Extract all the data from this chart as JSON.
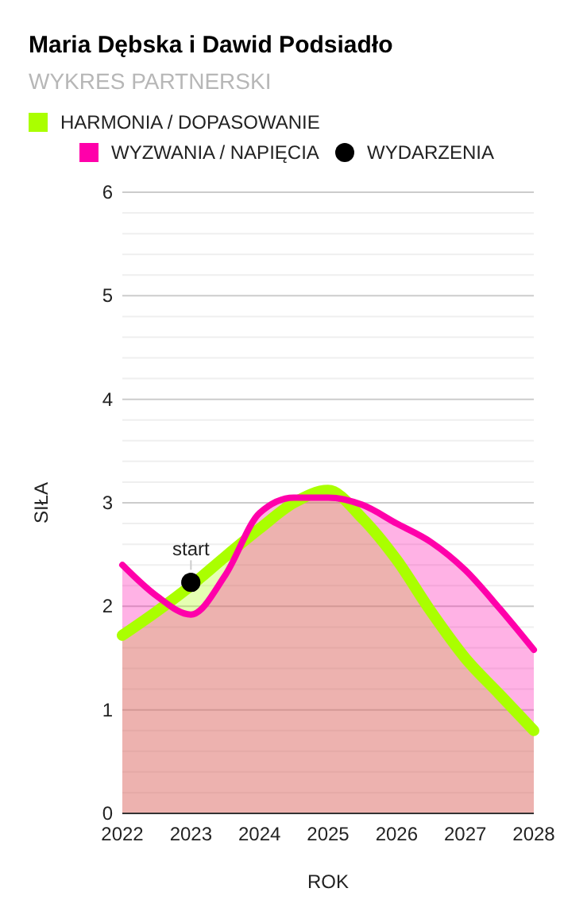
{
  "chart_data": {
    "type": "area",
    "title": "Maria Dębska i Dawid Podsiadło",
    "subtitle": "WYKRES PARTNERSKI",
    "xlabel": "ROK",
    "ylabel": "SIŁA",
    "x": [
      2022,
      2022.5,
      2023,
      2023.5,
      2024,
      2024.5,
      2025,
      2025.5,
      2026,
      2026.5,
      2027,
      2027.5,
      2028
    ],
    "series": [
      {
        "name": "HARMONIA / DOPASOWANIE",
        "color": "#aaff00",
        "values": [
          1.72,
          1.95,
          2.2,
          2.48,
          2.75,
          3.0,
          3.12,
          2.85,
          2.45,
          1.95,
          1.5,
          1.15,
          0.8
        ]
      },
      {
        "name": "WYZWANIA / NAPIĘCIA",
        "color": "#ff00aa",
        "values": [
          2.4,
          2.1,
          1.92,
          2.3,
          2.9,
          3.05,
          3.05,
          2.98,
          2.8,
          2.62,
          2.35,
          1.98,
          1.58
        ]
      },
      {
        "name": "WYDARZENIA",
        "type": "scatter",
        "marker": "circle",
        "color": "#000000",
        "x": [
          2023
        ],
        "values": [
          2.23
        ]
      }
    ],
    "annotations": [
      {
        "text": "start",
        "x": 2023,
        "y": 2.23
      }
    ],
    "xlim": [
      2022,
      2028
    ],
    "xticks": [
      2022,
      2023,
      2024,
      2025,
      2026,
      2027,
      2028
    ],
    "ylim": [
      0,
      6
    ],
    "yticks": [
      0,
      {
        "value": 0.2,
        "label": null
      },
      {
        "value": 0.4,
        "label": null
      },
      {
        "value": 0.6,
        "label": null
      },
      {
        "value": 0.8,
        "label": null
      },
      1,
      {
        "value": 1.2,
        "label": null
      },
      {
        "value": 1.4,
        "label": null
      },
      {
        "value": 1.6,
        "label": null
      },
      {
        "value": 1.8,
        "label": null
      },
      2,
      {
        "value": 2.2,
        "label": null
      },
      {
        "value": 2.4,
        "label": null
      },
      {
        "value": 2.6,
        "label": null
      },
      {
        "value": 2.8,
        "label": null
      },
      3,
      {
        "value": 3.2,
        "label": null
      },
      {
        "value": 3.4,
        "label": null
      },
      {
        "value": 3.6,
        "label": null
      },
      {
        "value": 3.8,
        "label": null
      },
      4,
      {
        "value": 4.2,
        "label": null
      },
      {
        "value": 4.4,
        "label": null
      },
      {
        "value": 4.6,
        "label": null
      },
      {
        "value": 4.8,
        "label": null
      },
      5,
      {
        "value": 5.2,
        "label": null
      },
      {
        "value": 5.4,
        "label": null
      },
      {
        "value": 5.6,
        "label": null
      },
      {
        "value": 5.8,
        "label": null
      },
      6
    ],
    "grid": "y",
    "legend": "top left"
  }
}
